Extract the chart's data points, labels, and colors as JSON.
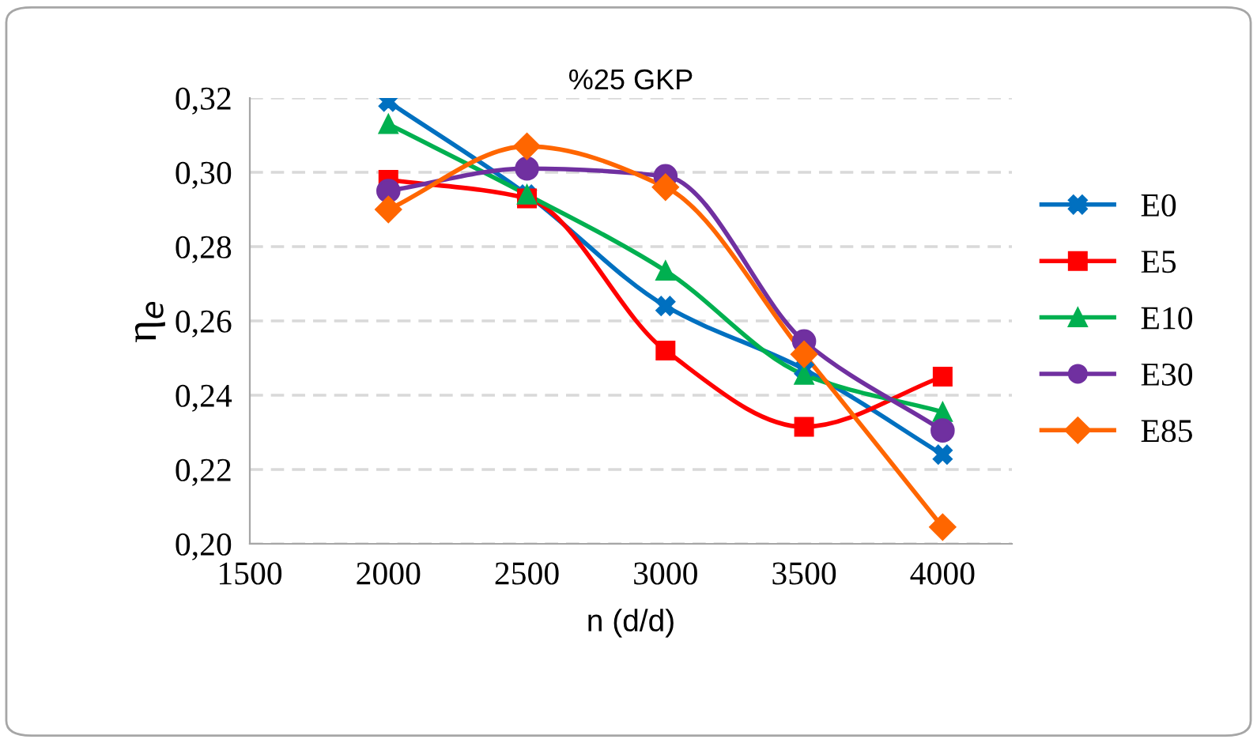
{
  "chart_data": {
    "type": "line",
    "title": "%25 GKP",
    "xlabel": "n (d/d)",
    "ylabel": "η$_{e}$",
    "x": [
      2000,
      2500,
      3000,
      3500,
      4000
    ],
    "xlim": [
      1500,
      4250
    ],
    "xticks": [
      1500,
      2000,
      2500,
      3000,
      3500,
      4000
    ],
    "ylim": [
      0.2,
      0.32
    ],
    "yticks": [
      {
        "value": 0.2,
        "label": "0,20"
      },
      {
        "value": 0.22,
        "label": "0,22"
      },
      {
        "value": 0.24,
        "label": "0,24"
      },
      {
        "value": 0.26,
        "label": "0,26"
      },
      {
        "value": 0.28,
        "label": "0,28"
      },
      {
        "value": 0.3,
        "label": "0,30"
      },
      {
        "value": 0.32,
        "label": "0,32"
      }
    ],
    "grid": "y",
    "legend": "right",
    "line_style": "solid",
    "series": [
      {
        "name": "E0",
        "color": "#0070c0",
        "marker": "cross",
        "values": [
          0.319,
          0.294,
          0.264,
          0.247,
          0.224
        ]
      },
      {
        "name": "E5",
        "color": "#ff0000",
        "marker": "square",
        "values": [
          0.298,
          0.293,
          0.252,
          0.2315,
          0.245
        ]
      },
      {
        "name": "E10",
        "color": "#00b050",
        "marker": "triangle",
        "values": [
          0.313,
          0.294,
          0.2735,
          0.2455,
          0.2355
        ]
      },
      {
        "name": "E30",
        "color": "#7030a0",
        "marker": "circle",
        "values": [
          0.295,
          0.301,
          0.299,
          0.2545,
          0.2305
        ]
      },
      {
        "name": "E85",
        "color": "#ff6600",
        "marker": "diamond",
        "values": [
          0.29,
          0.307,
          0.296,
          0.251,
          0.2045
        ]
      }
    ]
  }
}
